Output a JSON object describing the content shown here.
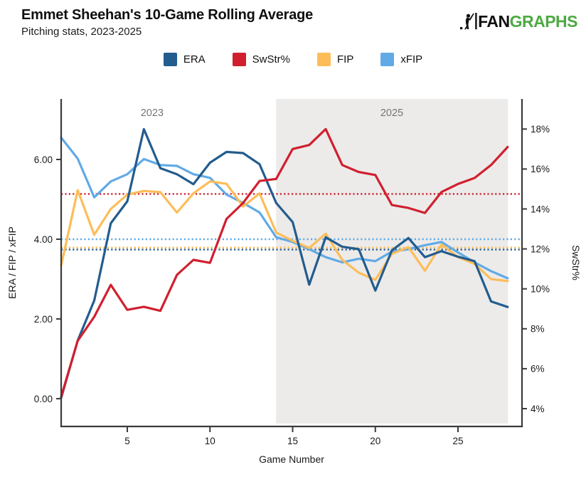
{
  "header": {
    "title": "Emmet Sheehan's 10-Game Rolling Average",
    "subtitle": "Pitching stats, 2023-2025",
    "logo_fan": "FAN",
    "logo_graphs": "GRAPHS"
  },
  "legend": [
    {
      "label": "ERA",
      "color": "#235C8E"
    },
    {
      "label": "SwStr%",
      "color": "#D0202F"
    },
    {
      "label": "FIP",
      "color": "#FCBD59"
    },
    {
      "label": "xFIP",
      "color": "#62AAE6"
    }
  ],
  "chart_data": {
    "type": "line",
    "xlabel": "Game Number",
    "ylabel_left": "ERA / FIP / xFIP",
    "ylabel_right": "SwStr%",
    "x_range": [
      1,
      28
    ],
    "x_ticks": [
      5,
      10,
      15,
      20,
      25
    ],
    "left_axis": {
      "ticks": [
        0,
        2,
        4,
        6
      ],
      "tick_labels": [
        "0.00",
        "2.00",
        "4.00",
        "6.00"
      ]
    },
    "right_axis": {
      "ticks": [
        4,
        6,
        8,
        10,
        12,
        14,
        16,
        18
      ],
      "tick_labels": [
        "4%",
        "6%",
        "8%",
        "10%",
        "12%",
        "14%",
        "16%",
        "18%"
      ]
    },
    "era_bands": [
      {
        "label": "2023",
        "label_x": 6.5,
        "shaded": false,
        "start": 1,
        "end": 14
      },
      {
        "label": "2025",
        "label_x": 21.0,
        "shaded": true,
        "start": 14,
        "end": 28
      }
    ],
    "shade_color": "#ECEBEA",
    "era_label_color": "#757575",
    "axis_color": "#3B3B3B",
    "tick_label_color": "#1A1A1A",
    "series": [
      {
        "name": "xFIP",
        "axis": "left",
        "color": "#62AAE6",
        "avg": 4.0,
        "values": [
          6.55,
          6.02,
          5.05,
          5.45,
          5.63,
          6.01,
          5.86,
          5.84,
          5.63,
          5.54,
          5.12,
          4.91,
          4.67,
          4.05,
          3.93,
          3.75,
          3.55,
          3.42,
          3.51,
          3.45,
          3.69,
          3.75,
          3.85,
          3.93,
          3.67,
          3.42,
          3.2,
          3.02
        ]
      },
      {
        "name": "FIP",
        "axis": "left",
        "color": "#FCBD59",
        "avg": 3.79,
        "values": [
          3.34,
          5.23,
          4.11,
          4.76,
          5.12,
          5.21,
          5.18,
          4.67,
          5.15,
          5.45,
          5.39,
          4.82,
          5.15,
          4.17,
          3.96,
          3.78,
          4.14,
          3.48,
          3.16,
          2.98,
          3.63,
          3.8,
          3.21,
          3.87,
          3.55,
          3.38,
          3.0,
          2.95
        ]
      },
      {
        "name": "ERA",
        "axis": "left",
        "color": "#235C8E",
        "avg": 3.74,
        "values": [
          0.02,
          1.46,
          2.46,
          4.4,
          4.95,
          6.76,
          5.78,
          5.63,
          5.38,
          5.92,
          6.19,
          6.16,
          5.88,
          4.91,
          4.43,
          2.86,
          4.05,
          3.81,
          3.75,
          2.71,
          3.72,
          4.03,
          3.55,
          3.7,
          3.56,
          3.45,
          2.44,
          2.3
        ]
      },
      {
        "name": "SwStr%",
        "axis": "right",
        "color": "#D0202F",
        "avg": 14.75,
        "values": [
          4.6,
          7.4,
          8.6,
          10.2,
          8.95,
          9.1,
          8.9,
          10.7,
          11.45,
          11.3,
          13.5,
          14.3,
          15.4,
          15.5,
          17.0,
          17.2,
          18.0,
          16.2,
          15.85,
          15.7,
          14.2,
          14.05,
          13.8,
          14.85,
          15.25,
          15.55,
          16.2,
          17.1
        ]
      }
    ]
  }
}
